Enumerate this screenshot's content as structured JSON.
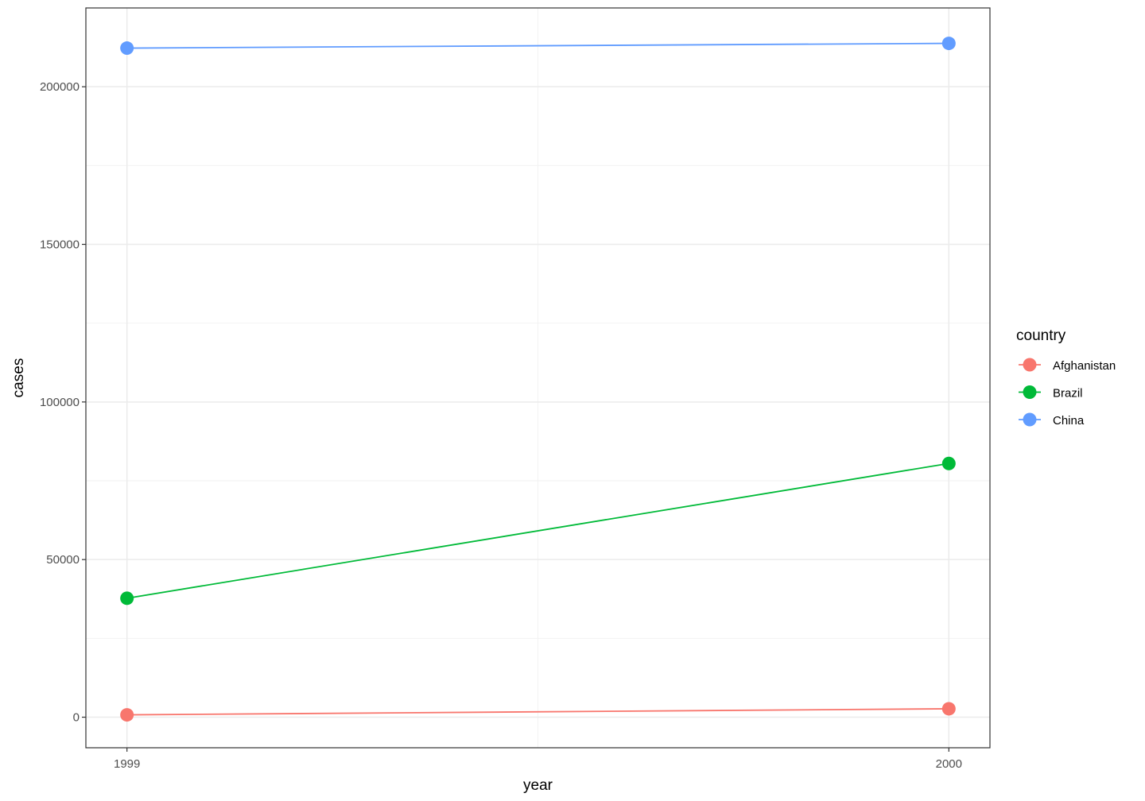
{
  "chart_data": {
    "type": "line",
    "title": "",
    "xlabel": "year",
    "ylabel": "cases",
    "x": [
      1999,
      2000
    ],
    "xticks": [
      "1999",
      "2000"
    ],
    "yticks": [
      "0",
      "50000",
      "100000",
      "150000",
      "200000"
    ],
    "xlim": [
      1998.95,
      2000.05
    ],
    "ylim": [
      -9700,
      225000
    ],
    "grid": true,
    "legend": {
      "title": "country",
      "placement": "right"
    },
    "series": [
      {
        "name": "Afghanistan",
        "color": "#F8766D",
        "values": [
          745,
          2666
        ]
      },
      {
        "name": "Brazil",
        "color": "#00BA38",
        "values": [
          37737,
          80488
        ]
      },
      {
        "name": "China",
        "color": "#619CFF",
        "values": [
          212258,
          213766
        ]
      }
    ]
  }
}
